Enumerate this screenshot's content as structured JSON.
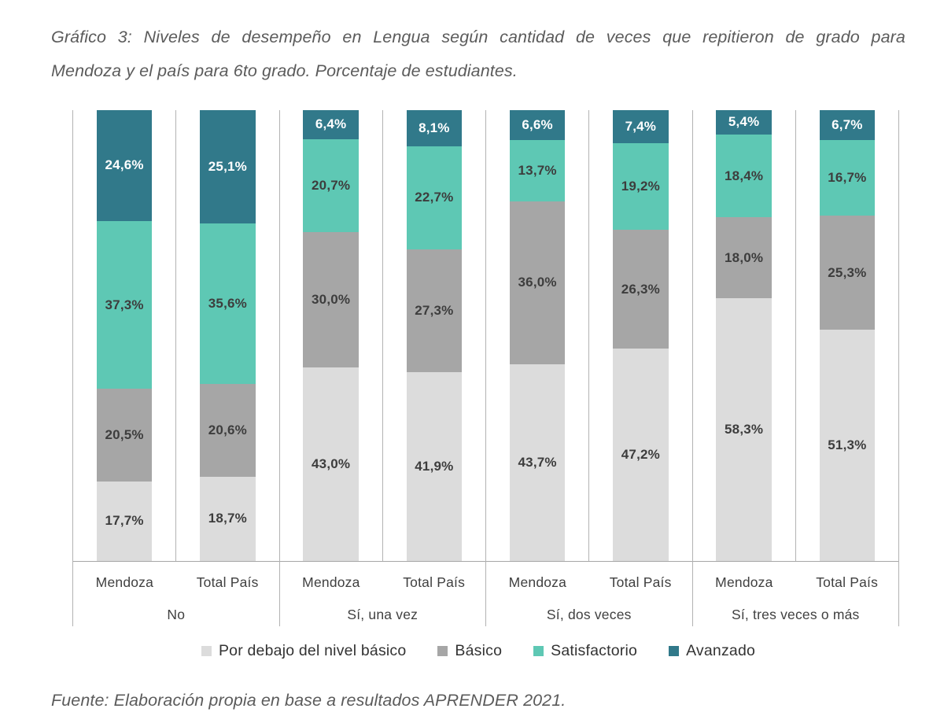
{
  "title": {
    "line1": "Gráfico 3: Niveles de desempeño en Lengua según cantidad de veces que repitieron de grado para",
    "line2": "Mendoza y el país para 6to grado. Porcentaje de estudiantes."
  },
  "source": "Fuente: Elaboración propia en base a resultados APRENDER 2021.",
  "chart_data": {
    "type": "bar",
    "stacked": true,
    "percent_stacked": true,
    "title": "Niveles de desempeño en Lengua según cantidad de veces que repitieron de grado, Mendoza y Total País, 6to grado",
    "xlabel": "",
    "ylabel": "Porcentaje de estudiantes",
    "ylim": [
      0,
      100
    ],
    "grid": false,
    "legend_position": "bottom",
    "series": [
      {
        "name": "Por debajo del nivel básico",
        "color": "#dcdcdc",
        "label_color": "#3d3d3d"
      },
      {
        "name": "Básico",
        "color": "#a6a6a6",
        "label_color": "#3d3d3d"
      },
      {
        "name": "Satisfactorio",
        "color": "#5ec8b4",
        "label_color": "#3d3d3d"
      },
      {
        "name": "Avanzado",
        "color": "#31798a",
        "label_color": "#ffffff"
      }
    ],
    "groups": [
      {
        "label": "No",
        "bars": [
          {
            "category": "Mendoza",
            "values": [
              17.7,
              20.5,
              37.3,
              24.6
            ]
          },
          {
            "category": "Total País",
            "values": [
              18.7,
              20.6,
              35.6,
              25.1
            ]
          }
        ]
      },
      {
        "label": "Sí, una vez",
        "bars": [
          {
            "category": "Mendoza",
            "values": [
              43.0,
              30.0,
              20.7,
              6.4
            ]
          },
          {
            "category": "Total País",
            "values": [
              41.9,
              27.3,
              22.7,
              8.1
            ]
          }
        ]
      },
      {
        "label": "Sí, dos veces",
        "bars": [
          {
            "category": "Mendoza",
            "values": [
              43.7,
              36.0,
              13.7,
              6.6
            ]
          },
          {
            "category": "Total País",
            "values": [
              47.2,
              26.3,
              19.2,
              7.4
            ]
          }
        ]
      },
      {
        "label": "Sí, tres veces o más",
        "bars": [
          {
            "category": "Mendoza",
            "values": [
              58.3,
              18.0,
              18.4,
              5.4
            ]
          },
          {
            "category": "Total País",
            "values": [
              51.3,
              25.3,
              16.7,
              6.7
            ]
          }
        ]
      }
    ],
    "value_label_format": "comma-decimal-percent"
  }
}
